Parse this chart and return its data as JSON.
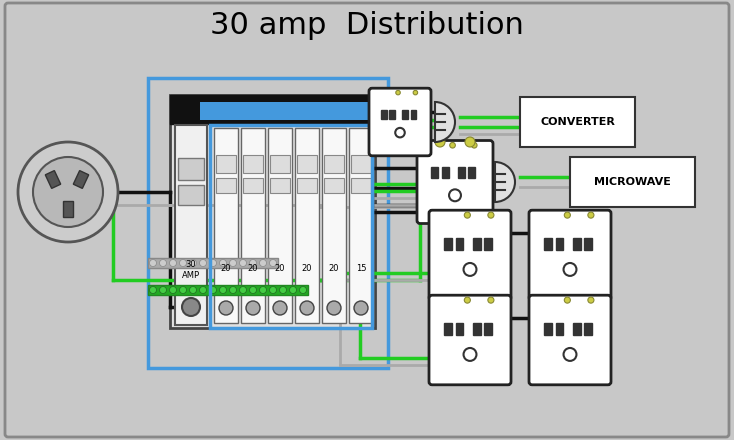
{
  "title": "30 amp  Distribution",
  "title_fontsize": 22,
  "bg_color": "#c8c8c8",
  "border_color": "#888888",
  "panel_border_color": "#4499dd",
  "wire_black": "#111111",
  "wire_green": "#22cc22",
  "wire_gray": "#aaaaaa",
  "breaker_labels": [
    "30\nAMP",
    "20",
    "20",
    "20",
    "20",
    "20",
    "15"
  ]
}
